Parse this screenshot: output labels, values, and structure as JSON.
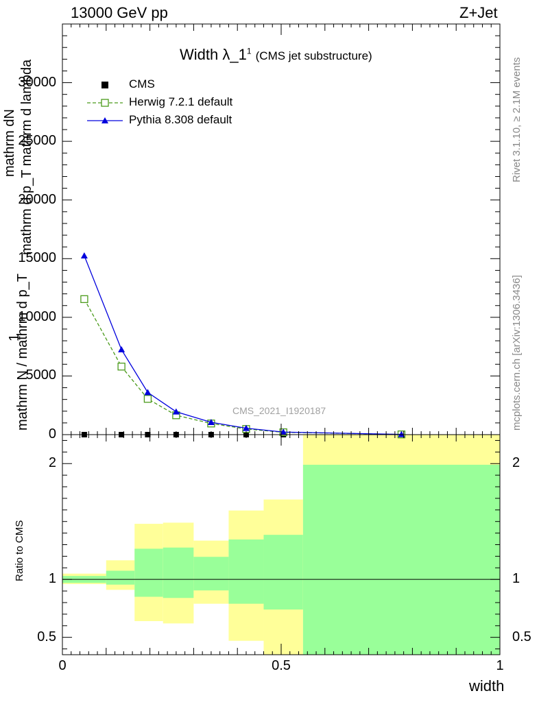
{
  "header": {
    "energy": "13000 GeV pp",
    "process": "Z+Jet"
  },
  "side_labels": {
    "rivet": "Rivet 3.1.10, ≥ 2.1M events",
    "mcplots": "mcplots.cern.ch [arXiv:1306.3436]"
  },
  "watermark": "CMS_2021_I1920187",
  "chart_data": [
    {
      "type": "line",
      "title": "Width λ_1¹ (CMS jet substructure)",
      "title_main": "Width λ_1",
      "title_sup": "1",
      "title_paren": "(CMS jet substructure)",
      "ylabel_lines": [
        "1",
        "mathrm N / mathrm d p_T",
        "mathrm dN",
        "mathrm d p_T mathrm d lambda"
      ],
      "ylim": [
        0,
        35000
      ],
      "xlim": [
        0,
        1
      ],
      "yticks": [
        0,
        5000,
        10000,
        15000,
        20000,
        25000,
        30000
      ],
      "ytick_labels": [
        "0",
        "5000",
        "10000",
        "15000",
        "20000",
        "25000",
        "30000"
      ],
      "legend_position": "top-left",
      "series": [
        {
          "name": "CMS",
          "style": "marker-square",
          "color": "#000000",
          "x": [
            0.05,
            0.135,
            0.195,
            0.26,
            0.34,
            0.42,
            0.505,
            0.775
          ],
          "y": [
            0,
            0,
            0,
            0,
            0,
            0,
            0,
            0
          ]
        },
        {
          "name": "Herwig 7.2.1 default",
          "style": "dashed-open-square",
          "color": "#4a9a1a",
          "x": [
            0.05,
            0.135,
            0.195,
            0.26,
            0.34,
            0.42,
            0.505,
            0.775
          ],
          "y": [
            11550,
            5800,
            3050,
            1650,
            950,
            480,
            200,
            20
          ]
        },
        {
          "name": "Pythia 8.308 default",
          "style": "solid-triangle",
          "color": "#0000dd",
          "x": [
            0.05,
            0.135,
            0.195,
            0.26,
            0.34,
            0.42,
            0.505,
            0.775
          ],
          "y": [
            15250,
            7250,
            3600,
            1950,
            1050,
            550,
            220,
            20
          ]
        }
      ]
    },
    {
      "type": "area",
      "ylabel": "Ratio to CMS",
      "xlabel": "width",
      "xlim": [
        0,
        1
      ],
      "ylim": [
        0.35,
        2.25
      ],
      "xticks": [
        0,
        0.5,
        1
      ],
      "xtick_labels": [
        "0",
        "0.5",
        "1"
      ],
      "yticks": [
        0.5,
        1,
        2
      ],
      "ytick_labels": [
        "0.5",
        "1",
        "2"
      ],
      "bins": [
        {
          "x0": 0.0,
          "x1": 0.1,
          "inner": [
            0.97,
            1.03
          ],
          "outer": [
            0.96,
            1.05
          ]
        },
        {
          "x0": 0.1,
          "x1": 0.165,
          "inner": [
            0.955,
            1.075
          ],
          "outer": [
            0.91,
            1.165
          ]
        },
        {
          "x0": 0.165,
          "x1": 0.23,
          "inner": [
            0.85,
            1.265
          ],
          "outer": [
            0.64,
            1.48
          ]
        },
        {
          "x0": 0.23,
          "x1": 0.3,
          "inner": [
            0.84,
            1.275
          ],
          "outer": [
            0.62,
            1.49
          ]
        },
        {
          "x0": 0.3,
          "x1": 0.38,
          "inner": [
            0.905,
            1.195
          ],
          "outer": [
            0.79,
            1.335
          ]
        },
        {
          "x0": 0.38,
          "x1": 0.46,
          "inner": [
            0.79,
            1.345
          ],
          "outer": [
            0.47,
            1.595
          ]
        },
        {
          "x0": 0.46,
          "x1": 0.55,
          "inner": [
            0.74,
            1.385
          ],
          "outer": [
            0.35,
            1.69
          ]
        },
        {
          "x0": 0.55,
          "x1": 1.0,
          "inner": [
            0.35,
            1.99
          ],
          "outer": [
            0.35,
            2.25
          ]
        }
      ],
      "band_colors": {
        "inner": "#99ff99",
        "outer": "#ffff99"
      }
    }
  ]
}
